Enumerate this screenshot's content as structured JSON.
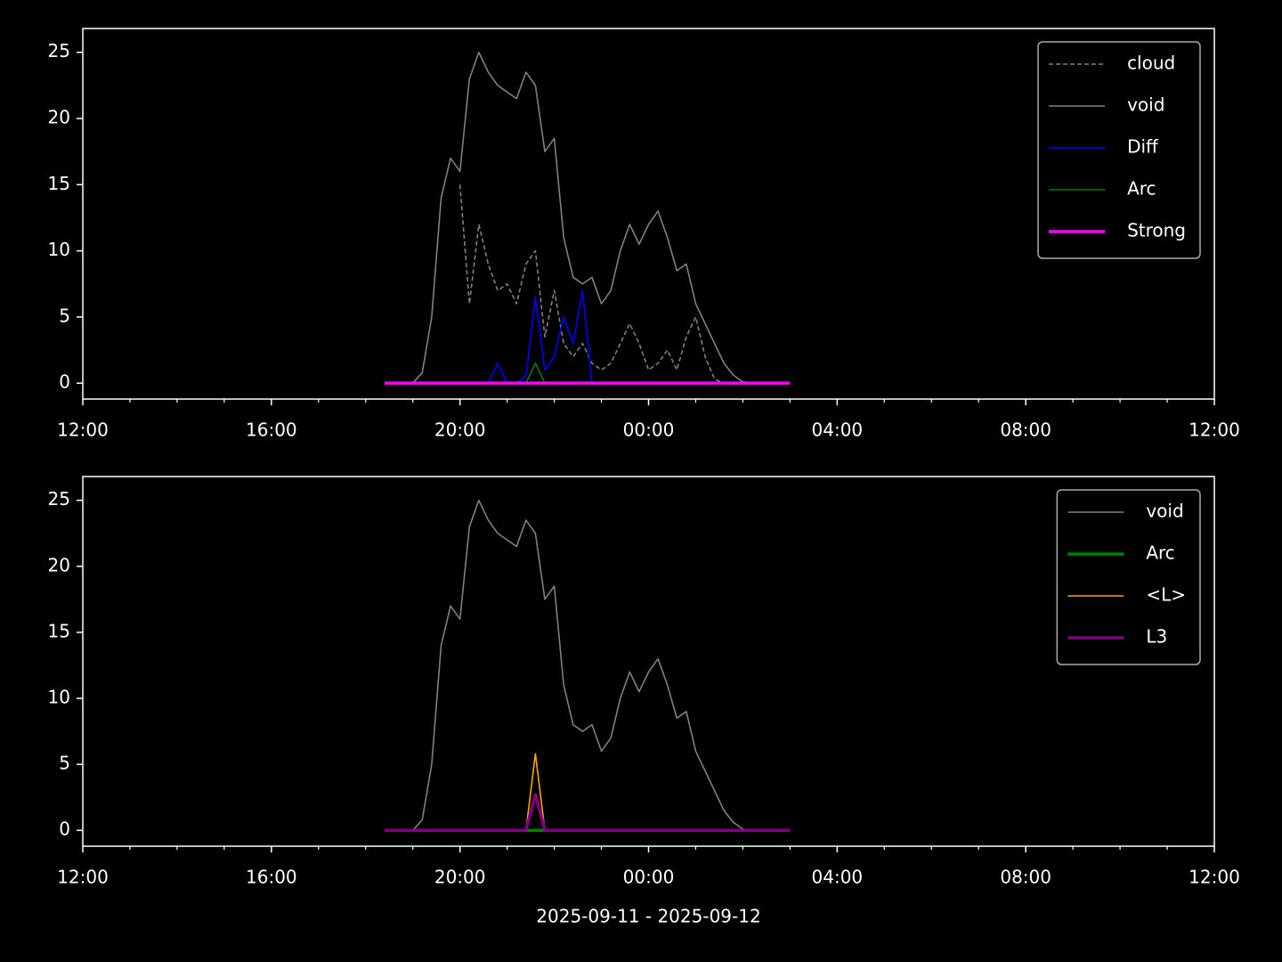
{
  "chart_data": [
    {
      "type": "line",
      "x": [
        18.4,
        18.6,
        18.8,
        19.0,
        19.2,
        19.4,
        19.6,
        19.8,
        20.0,
        20.2,
        20.4,
        20.6,
        20.8,
        21.0,
        21.2,
        21.4,
        21.6,
        21.8,
        22.0,
        22.2,
        22.4,
        22.6,
        22.8,
        23.0,
        23.2,
        23.4,
        23.6,
        23.8,
        24.0,
        24.2,
        24.4,
        24.6,
        24.8,
        25.0,
        25.2,
        25.4,
        25.6,
        25.8,
        26.0,
        26.2,
        26.4,
        26.6,
        26.8,
        27.0
      ],
      "series": [
        {
          "name": "cloud",
          "color": "#808080",
          "linestyle": "dashed",
          "values": [
            null,
            null,
            null,
            null,
            null,
            null,
            null,
            null,
            15,
            6,
            12,
            9,
            7,
            7.5,
            6,
            9,
            10,
            3.5,
            7,
            3,
            2,
            3,
            1.5,
            1,
            1.5,
            3,
            4.5,
            3,
            1,
            1.5,
            2.5,
            1,
            3.5,
            5,
            2,
            0.3,
            0,
            null,
            null,
            null,
            null,
            null,
            null,
            null
          ]
        },
        {
          "name": "void",
          "color": "#808080",
          "values": [
            null,
            null,
            null,
            0,
            0.8,
            5,
            14,
            17,
            16,
            23,
            25,
            23.5,
            22.5,
            22,
            21.5,
            23.5,
            22.5,
            17.5,
            18.5,
            11,
            8,
            7.5,
            8,
            6,
            7,
            10,
            12,
            10.5,
            12,
            13,
            11,
            8.5,
            9,
            6,
            4.5,
            3,
            1.5,
            0.6,
            0.1,
            0,
            null,
            null,
            null,
            null
          ]
        },
        {
          "name": "Diff",
          "color": "#0000ff",
          "values": [
            null,
            null,
            null,
            null,
            null,
            null,
            null,
            null,
            null,
            null,
            null,
            0,
            1.5,
            0,
            0,
            0.5,
            6.5,
            1,
            2,
            5,
            3,
            7,
            0,
            null,
            null,
            null,
            null,
            null,
            null,
            null,
            null,
            null,
            null,
            null,
            null,
            null,
            null,
            null,
            null,
            null,
            null,
            null,
            null,
            null
          ]
        },
        {
          "name": "Arc",
          "color": "#008000",
          "values": [
            null,
            null,
            null,
            null,
            null,
            null,
            null,
            null,
            null,
            null,
            null,
            null,
            null,
            null,
            null,
            0,
            1.5,
            0,
            null,
            null,
            null,
            null,
            null,
            null,
            null,
            null,
            null,
            null,
            null,
            null,
            null,
            null,
            null,
            null,
            null,
            null,
            null,
            null,
            null,
            null,
            null,
            null,
            null,
            null
          ]
        },
        {
          "name": "Strong",
          "color": "#ff00ff",
          "thick": true,
          "values": [
            0,
            0,
            0,
            0,
            0,
            0,
            0,
            0,
            0,
            0,
            0,
            0,
            0,
            0,
            0,
            0,
            0,
            0,
            0,
            0,
            0,
            0,
            0,
            0,
            0,
            0,
            0,
            0,
            0,
            0,
            0,
            0,
            0,
            0,
            0,
            0,
            0,
            0,
            0,
            0,
            0,
            0,
            0,
            0
          ]
        }
      ],
      "xlim": [
        12,
        36
      ],
      "ylim": [
        -1.2,
        26.8
      ],
      "xticks": [
        {
          "value": 12,
          "label": "12:00"
        },
        {
          "value": 16,
          "label": "16:00"
        },
        {
          "value": 20,
          "label": "20:00"
        },
        {
          "value": 24,
          "label": "00:00"
        },
        {
          "value": 28,
          "label": "04:00"
        },
        {
          "value": 32,
          "label": "08:00"
        },
        {
          "value": 36,
          "label": "12:00"
        }
      ],
      "xminorticks": [
        13,
        14,
        15,
        17,
        18,
        19,
        21,
        22,
        23,
        25,
        26,
        27,
        29,
        30,
        31,
        33,
        34,
        35
      ],
      "yticks": [
        0,
        5,
        10,
        15,
        20,
        25
      ],
      "legend": "upper right"
    },
    {
      "type": "line",
      "x": [
        18.4,
        18.6,
        18.8,
        19.0,
        19.2,
        19.4,
        19.6,
        19.8,
        20.0,
        20.2,
        20.4,
        20.6,
        20.8,
        21.0,
        21.2,
        21.4,
        21.6,
        21.8,
        22.0,
        22.2,
        22.4,
        22.6,
        22.8,
        23.0,
        23.2,
        23.4,
        23.6,
        23.8,
        24.0,
        24.2,
        24.4,
        24.6,
        24.8,
        25.0,
        25.2,
        25.4,
        25.6,
        25.8,
        26.0,
        26.2,
        26.4,
        26.6,
        26.8,
        27.0
      ],
      "series": [
        {
          "name": "void",
          "color": "#808080",
          "values": [
            null,
            null,
            null,
            0,
            0.8,
            5,
            14,
            17,
            16,
            23,
            25,
            23.5,
            22.5,
            22,
            21.5,
            23.5,
            22.5,
            17.5,
            18.5,
            11,
            8,
            7.5,
            8,
            6,
            7,
            10,
            12,
            10.5,
            12,
            13,
            11,
            8.5,
            9,
            6,
            4.5,
            3,
            1.5,
            0.6,
            0.1,
            0,
            null,
            null,
            null,
            null
          ]
        },
        {
          "name": "Arc",
          "color": "#008000",
          "thick": true,
          "values": [
            0,
            0,
            0,
            0,
            0,
            0,
            0,
            0,
            0,
            0,
            0,
            0,
            0,
            0,
            0,
            0,
            0,
            0,
            0,
            0,
            0,
            0,
            0,
            0,
            0,
            0,
            0,
            0,
            0,
            0,
            0,
            0,
            0,
            0,
            0,
            0,
            0,
            0,
            0,
            0,
            0,
            0,
            0,
            0
          ]
        },
        {
          "name": "<L>",
          "color": "#ffa500",
          "values": [
            null,
            null,
            null,
            null,
            null,
            null,
            null,
            null,
            null,
            null,
            null,
            null,
            null,
            null,
            null,
            0,
            5.8,
            0,
            null,
            null,
            null,
            null,
            null,
            null,
            null,
            null,
            null,
            null,
            null,
            null,
            null,
            null,
            null,
            null,
            null,
            null,
            null,
            null,
            null,
            null,
            null,
            null,
            null,
            null
          ]
        },
        {
          "name": "L3",
          "color": "#800080",
          "thick": true,
          "values": [
            0,
            0,
            0,
            0,
            0,
            0,
            0,
            0,
            0,
            0,
            0,
            0,
            0,
            0,
            0,
            0,
            2.7,
            0,
            0,
            0,
            0,
            0,
            0,
            0,
            0,
            0,
            0,
            0,
            0,
            0,
            0,
            0,
            0,
            0,
            0,
            0,
            0,
            0,
            0,
            0,
            0,
            0,
            0,
            0
          ]
        }
      ],
      "xlim": [
        12,
        36
      ],
      "ylim": [
        -1.2,
        26.8
      ],
      "xticks": [
        {
          "value": 12,
          "label": "12:00"
        },
        {
          "value": 16,
          "label": "16:00"
        },
        {
          "value": 20,
          "label": "20:00"
        },
        {
          "value": 24,
          "label": "00:00"
        },
        {
          "value": 28,
          "label": "04:00"
        },
        {
          "value": 32,
          "label": "08:00"
        },
        {
          "value": 36,
          "label": "12:00"
        }
      ],
      "xminorticks": [
        13,
        14,
        15,
        17,
        18,
        19,
        21,
        22,
        23,
        25,
        26,
        27,
        29,
        30,
        31,
        33,
        34,
        35
      ],
      "yticks": [
        0,
        5,
        10,
        15,
        20,
        25
      ],
      "xlabel": "2025-09-11 - 2025-09-12",
      "legend": "upper right"
    }
  ]
}
